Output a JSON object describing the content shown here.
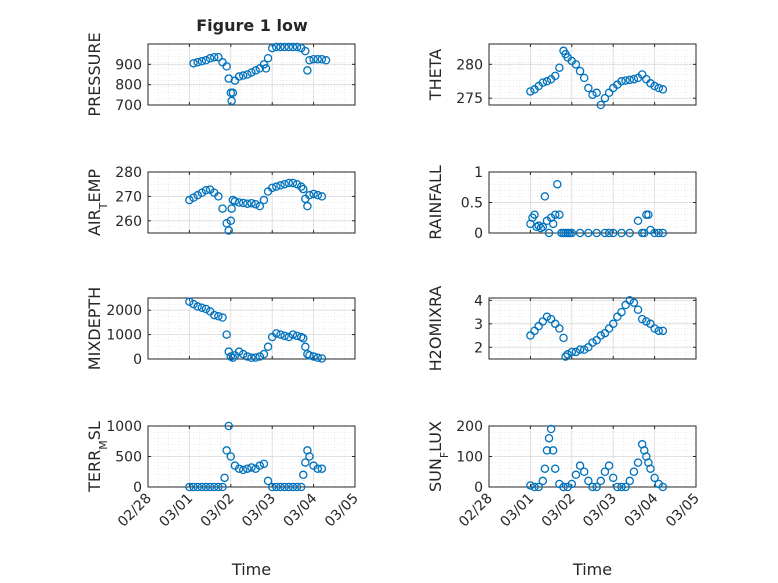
{
  "title": "Figure 1 low",
  "xlabel": "Time",
  "x_tick_labels": [
    "02/28",
    "03/01",
    "03/02",
    "03/03",
    "03/04",
    "03/05"
  ],
  "colors": {
    "marker": "#0072BD",
    "grid": "#d9d9d9",
    "axis": "#262626"
  },
  "chart_data": [
    {
      "type": "scatter",
      "title": "Figure 1 low",
      "ylabel": "PRESSURE",
      "xlabel": "",
      "xlim": [
        "02/28",
        "03/05"
      ],
      "ylim": [
        700,
        1000
      ],
      "yticks": [
        700,
        800,
        900
      ],
      "grid": true,
      "series": [
        {
          "x": [
            1.1,
            1.2,
            1.3,
            1.4,
            1.5,
            1.6,
            1.7,
            1.8,
            1.9,
            1.95,
            2.0,
            2.02,
            2.05,
            2.1,
            2.2,
            2.3,
            2.4,
            2.5,
            2.6,
            2.7,
            2.8,
            2.85,
            2.9,
            3.0,
            3.1,
            3.2,
            3.3,
            3.4,
            3.5,
            3.6,
            3.7,
            3.8,
            3.85,
            3.9,
            4.0,
            4.1,
            4.2,
            4.3
          ],
          "y": [
            905,
            910,
            915,
            920,
            930,
            935,
            935,
            910,
            890,
            830,
            760,
            720,
            760,
            820,
            840,
            845,
            850,
            860,
            870,
            880,
            900,
            880,
            930,
            980,
            985,
            985,
            985,
            985,
            985,
            985,
            980,
            965,
            870,
            920,
            925,
            925,
            925,
            920
          ]
        }
      ]
    },
    {
      "type": "scatter",
      "ylabel": "THETA",
      "xlabel": "",
      "xlim": [
        "02/28",
        "03/05"
      ],
      "ylim": [
        274,
        283
      ],
      "yticks": [
        275,
        280
      ],
      "grid": true,
      "series": [
        {
          "x": [
            1.0,
            1.1,
            1.2,
            1.3,
            1.4,
            1.5,
            1.6,
            1.7,
            1.8,
            1.85,
            1.9,
            2.0,
            2.1,
            2.2,
            2.3,
            2.4,
            2.5,
            2.6,
            2.7,
            2.8,
            2.9,
            3.0,
            3.1,
            3.2,
            3.3,
            3.4,
            3.5,
            3.6,
            3.7,
            3.8,
            3.9,
            4.0,
            4.1,
            4.2
          ],
          "y": [
            276.0,
            276.3,
            276.8,
            277.3,
            277.5,
            277.8,
            278.3,
            279.5,
            282.0,
            281.5,
            281.0,
            280.5,
            280.0,
            279.0,
            278.0,
            276.5,
            275.5,
            275.8,
            274.0,
            275.0,
            275.8,
            276.5,
            277.0,
            277.5,
            277.6,
            277.7,
            277.8,
            278.0,
            278.5,
            277.8,
            277.2,
            276.8,
            276.5,
            276.3
          ]
        }
      ]
    },
    {
      "type": "scatter",
      "ylabel": "AIR_TEMP",
      "xlabel": "",
      "xlim": [
        "02/28",
        "03/05"
      ],
      "ylim": [
        255,
        280
      ],
      "yticks": [
        260,
        270,
        280
      ],
      "grid": true,
      "series": [
        {
          "x": [
            1.0,
            1.1,
            1.2,
            1.3,
            1.4,
            1.5,
            1.6,
            1.7,
            1.8,
            1.9,
            1.95,
            2.0,
            2.02,
            2.05,
            2.1,
            2.2,
            2.3,
            2.4,
            2.5,
            2.6,
            2.7,
            2.8,
            2.9,
            3.0,
            3.1,
            3.2,
            3.3,
            3.4,
            3.5,
            3.6,
            3.7,
            3.75,
            3.8,
            3.85,
            3.9,
            4.0,
            4.1,
            4.2
          ],
          "y": [
            268.5,
            269.5,
            270.5,
            271.5,
            272.5,
            272.8,
            271.5,
            270.0,
            265.0,
            259.0,
            256.0,
            260.0,
            265.0,
            268.5,
            268.0,
            267.5,
            267.3,
            267.0,
            267.2,
            266.8,
            266.0,
            268.5,
            272.0,
            273.5,
            274.0,
            274.5,
            275.0,
            275.5,
            275.5,
            275.0,
            274.0,
            273.0,
            269.0,
            266.0,
            270.5,
            271.0,
            270.5,
            270.0
          ]
        }
      ]
    },
    {
      "type": "scatter",
      "ylabel": "RAINFALL",
      "xlabel": "",
      "xlim": [
        "02/28",
        "03/05"
      ],
      "ylim": [
        0,
        1
      ],
      "yticks": [
        0,
        0.5,
        1
      ],
      "grid": true,
      "series": [
        {
          "x": [
            1.0,
            1.05,
            1.1,
            1.15,
            1.2,
            1.25,
            1.3,
            1.35,
            1.4,
            1.45,
            1.5,
            1.55,
            1.6,
            1.65,
            1.7,
            1.75,
            1.8,
            1.85,
            1.9,
            1.95,
            2.0,
            2.2,
            2.4,
            2.6,
            2.8,
            2.9,
            3.0,
            3.2,
            3.4,
            3.6,
            3.7,
            3.75,
            3.8,
            3.85,
            3.9,
            4.0,
            4.1,
            4.2
          ],
          "y": [
            0.15,
            0.25,
            0.3,
            0.1,
            0.12,
            0.08,
            0.1,
            0.6,
            0.2,
            0.0,
            0.25,
            0.15,
            0.3,
            0.8,
            0.3,
            0.0,
            0.0,
            0.0,
            0.0,
            0.0,
            0.0,
            0.0,
            0.0,
            0.0,
            0.0,
            0.0,
            0.0,
            0.0,
            0.0,
            0.2,
            0.0,
            0.0,
            0.3,
            0.3,
            0.05,
            0.0,
            0.0,
            0.0
          ]
        }
      ]
    },
    {
      "type": "scatter",
      "ylabel": "MIXDEPTH",
      "xlabel": "",
      "xlim": [
        "02/28",
        "03/05"
      ],
      "ylim": [
        0,
        2500
      ],
      "yticks": [
        0,
        1000,
        2000
      ],
      "grid": true,
      "series": [
        {
          "x": [
            1.0,
            1.1,
            1.2,
            1.3,
            1.4,
            1.5,
            1.6,
            1.7,
            1.8,
            1.9,
            1.95,
            2.0,
            2.05,
            2.1,
            2.2,
            2.3,
            2.4,
            2.5,
            2.6,
            2.7,
            2.8,
            2.9,
            3.0,
            3.1,
            3.2,
            3.3,
            3.4,
            3.5,
            3.6,
            3.7,
            3.75,
            3.8,
            3.85,
            3.9,
            4.0,
            4.1,
            4.2
          ],
          "y": [
            2350,
            2250,
            2150,
            2100,
            2050,
            1950,
            1800,
            1750,
            1700,
            1000,
            300,
            100,
            50,
            150,
            300,
            200,
            100,
            50,
            60,
            100,
            200,
            500,
            900,
            1050,
            1000,
            950,
            900,
            1000,
            950,
            900,
            850,
            500,
            200,
            150,
            100,
            50,
            20
          ]
        }
      ]
    },
    {
      "type": "scatter",
      "ylabel": "H2OMIXRA",
      "xlabel": "",
      "xlim": [
        "02/28",
        "03/05"
      ],
      "ylim": [
        1.5,
        4.1
      ],
      "yticks": [
        2,
        3,
        4
      ],
      "grid": true,
      "series": [
        {
          "x": [
            1.0,
            1.1,
            1.2,
            1.3,
            1.4,
            1.5,
            1.6,
            1.7,
            1.8,
            1.85,
            1.9,
            2.0,
            2.1,
            2.2,
            2.3,
            2.4,
            2.5,
            2.6,
            2.7,
            2.8,
            2.9,
            3.0,
            3.1,
            3.2,
            3.3,
            3.4,
            3.5,
            3.6,
            3.7,
            3.8,
            3.9,
            4.0,
            4.1,
            4.2
          ],
          "y": [
            2.5,
            2.7,
            2.9,
            3.1,
            3.3,
            3.2,
            3.0,
            2.8,
            2.4,
            1.6,
            1.7,
            1.8,
            1.8,
            1.9,
            1.9,
            2.0,
            2.2,
            2.3,
            2.5,
            2.6,
            2.8,
            3.0,
            3.3,
            3.5,
            3.8,
            4.0,
            3.9,
            3.6,
            3.2,
            3.1,
            3.0,
            2.8,
            2.7,
            2.7
          ]
        }
      ]
    },
    {
      "type": "scatter",
      "ylabel": "TERR_MSL",
      "xlabel": "Time",
      "xlim": [
        "02/28",
        "03/05"
      ],
      "ylim": [
        0,
        1000
      ],
      "yticks": [
        0,
        500,
        1000
      ],
      "grid": true,
      "series": [
        {
          "x": [
            1.0,
            1.1,
            1.2,
            1.3,
            1.4,
            1.5,
            1.6,
            1.7,
            1.8,
            1.85,
            1.9,
            1.95,
            2.0,
            2.1,
            2.2,
            2.3,
            2.4,
            2.5,
            2.6,
            2.7,
            2.8,
            2.9,
            3.0,
            3.1,
            3.2,
            3.3,
            3.4,
            3.5,
            3.6,
            3.7,
            3.75,
            3.8,
            3.85,
            3.9,
            4.0,
            4.1,
            4.2
          ],
          "y": [
            0,
            0,
            0,
            0,
            0,
            0,
            0,
            0,
            0,
            150,
            600,
            1000,
            500,
            350,
            300,
            280,
            300,
            320,
            300,
            350,
            380,
            100,
            0,
            0,
            0,
            0,
            0,
            0,
            0,
            0,
            200,
            400,
            600,
            500,
            350,
            300,
            300
          ]
        }
      ]
    },
    {
      "type": "scatter",
      "ylabel": "SUN_FLUX",
      "xlabel": "Time",
      "xlim": [
        "02/28",
        "03/05"
      ],
      "ylim": [
        0,
        200
      ],
      "yticks": [
        0,
        100,
        200
      ],
      "grid": true,
      "series": [
        {
          "x": [
            1.0,
            1.1,
            1.2,
            1.3,
            1.35,
            1.4,
            1.45,
            1.5,
            1.55,
            1.6,
            1.7,
            1.8,
            1.9,
            2.0,
            2.1,
            2.2,
            2.3,
            2.4,
            2.5,
            2.6,
            2.7,
            2.8,
            2.9,
            3.0,
            3.1,
            3.2,
            3.3,
            3.4,
            3.5,
            3.6,
            3.7,
            3.75,
            3.8,
            3.85,
            3.9,
            4.0,
            4.1,
            4.2
          ],
          "y": [
            5,
            0,
            0,
            20,
            60,
            120,
            160,
            190,
            120,
            60,
            10,
            0,
            0,
            10,
            40,
            70,
            50,
            20,
            0,
            0,
            20,
            50,
            70,
            30,
            0,
            0,
            0,
            20,
            50,
            80,
            140,
            120,
            100,
            80,
            60,
            30,
            10,
            0
          ]
        }
      ]
    }
  ]
}
